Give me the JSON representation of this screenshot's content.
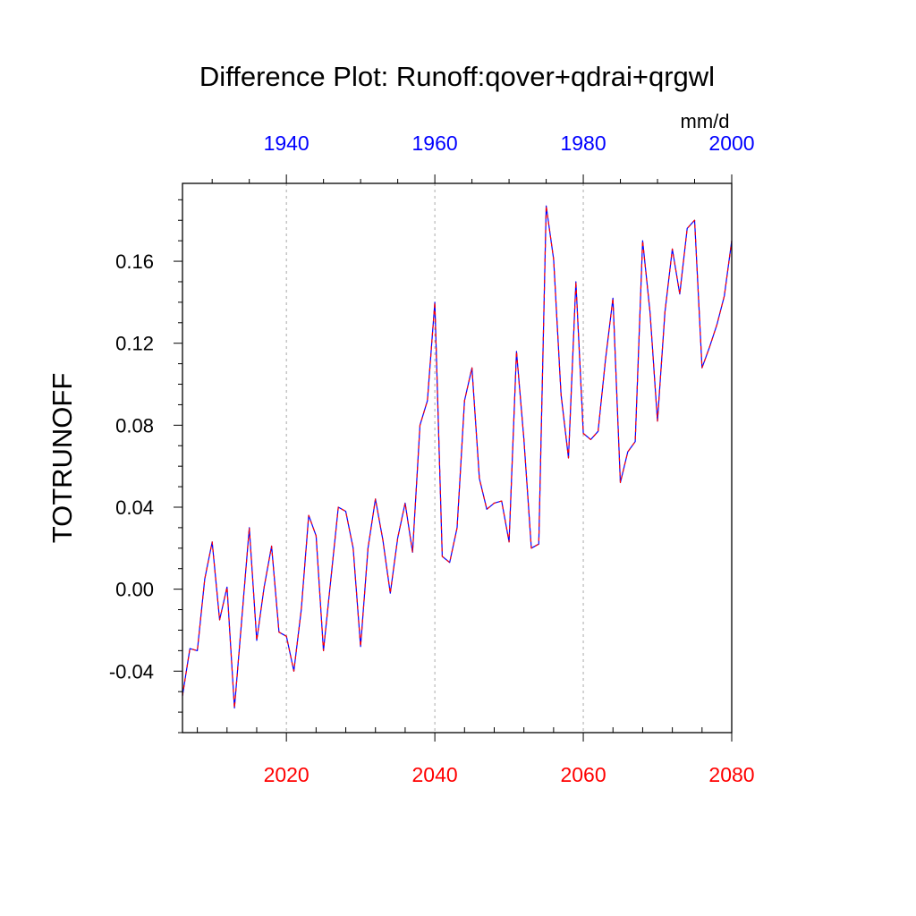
{
  "chart_data": {
    "type": "line",
    "title": "Difference Plot: Runoff:qover+qdrai+qrgwl",
    "ylabel": "TOTRUNOFF",
    "units": "mm/d",
    "x_bottom": {
      "label": "",
      "range": [
        2006,
        2080
      ],
      "tick_labels": [
        "2020",
        "2040",
        "2060",
        "2080"
      ],
      "color": "#ff0000"
    },
    "x_top": {
      "label": "",
      "range": [
        1926,
        2000
      ],
      "tick_labels": [
        "1940",
        "1960",
        "1980",
        "2000"
      ],
      "color": "#0000ff"
    },
    "ylim": [
      -0.07,
      0.198
    ],
    "yticks": [
      "-0.04",
      "0.00",
      "0.04",
      "0.08",
      "0.12",
      "0.16"
    ],
    "grid": "vertical dotted at 2020, 2040, 2060",
    "series": [
      {
        "color_a": "#ff0000",
        "color_b": "#0000ff",
        "style": "dashed red over blue",
        "x": [
          2006,
          2007,
          2008,
          2009,
          2010,
          2011,
          2012,
          2013,
          2014,
          2015,
          2016,
          2017,
          2018,
          2019,
          2020,
          2021,
          2022,
          2023,
          2024,
          2025,
          2026,
          2027,
          2028,
          2029,
          2030,
          2031,
          2032,
          2033,
          2034,
          2035,
          2036,
          2037,
          2038,
          2039,
          2040,
          2041,
          2042,
          2043,
          2044,
          2045,
          2046,
          2047,
          2048,
          2049,
          2050,
          2051,
          2052,
          2053,
          2054,
          2055,
          2056,
          2057,
          2058,
          2059,
          2060,
          2061,
          2062,
          2063,
          2064,
          2065,
          2066,
          2067,
          2068,
          2069,
          2070,
          2071,
          2072,
          2073,
          2074,
          2075,
          2076,
          2077,
          2078,
          2079,
          2080
        ],
        "y": [
          -0.052,
          -0.029,
          -0.03,
          0.005,
          0.023,
          -0.015,
          0.001,
          -0.058,
          -0.014,
          0.03,
          -0.025,
          0.001,
          0.021,
          -0.021,
          -0.023,
          -0.04,
          -0.01,
          0.036,
          0.026,
          -0.03,
          0.005,
          0.04,
          0.038,
          0.02,
          -0.028,
          0.02,
          0.044,
          0.024,
          -0.002,
          0.025,
          0.042,
          0.018,
          0.08,
          0.092,
          0.14,
          0.016,
          0.013,
          0.03,
          0.092,
          0.108,
          0.054,
          0.039,
          0.042,
          0.043,
          0.023,
          0.116,
          0.073,
          0.02,
          0.022,
          0.187,
          0.161,
          0.095,
          0.064,
          0.15,
          0.076,
          0.073,
          0.077,
          0.112,
          0.142,
          0.052,
          0.067,
          0.072,
          0.17,
          0.135,
          0.082,
          0.135,
          0.166,
          0.144,
          0.176,
          0.18,
          0.108,
          0.118,
          0.129,
          0.143,
          0.17
        ]
      }
    ]
  }
}
